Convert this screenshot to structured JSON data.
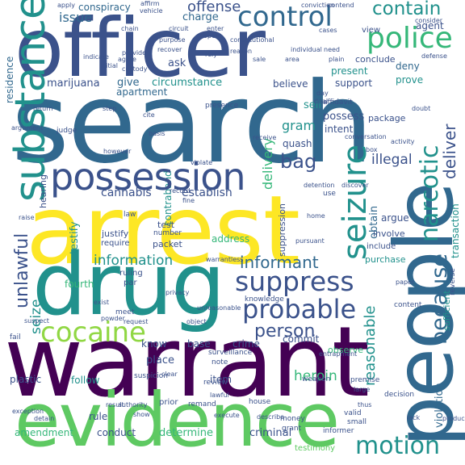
{
  "palette": {
    "purple": "#440154",
    "indigo": "#3b528b",
    "blue": "#31688e",
    "teal": "#21918c",
    "seagreen": "#35b779",
    "green": "#5ec962",
    "lime": "#90d743",
    "yellow": "#fde725"
  },
  "words": [
    {
      "t": "search",
      "c": "blue",
      "w": 1.0
    },
    {
      "t": "arrest",
      "c": "yellow",
      "w": 0.86
    },
    {
      "t": "warrant",
      "c": "purple",
      "w": 0.93
    },
    {
      "t": "officer",
      "c": "indigo",
      "w": 0.78
    },
    {
      "t": "drug",
      "c": "teal",
      "w": 0.77
    },
    {
      "t": "evidence",
      "c": "green",
      "w": 0.7
    },
    {
      "t": "people",
      "c": "blue",
      "w": 0.72
    },
    {
      "t": "substance",
      "c": "teal",
      "w": 0.45
    },
    {
      "t": "possession",
      "c": "indigo",
      "w": 0.42
    },
    {
      "t": "police",
      "c": "seagreen",
      "w": 0.33
    },
    {
      "t": "control",
      "c": "blue",
      "w": 0.31
    },
    {
      "t": "seizure",
      "c": "teal",
      "w": 0.3
    },
    {
      "t": "cocaine",
      "c": "lime",
      "w": 0.31
    },
    {
      "t": "probable",
      "c": "indigo",
      "w": 0.3
    },
    {
      "t": "suppress",
      "c": "indigo",
      "w": 0.3
    },
    {
      "t": "motion",
      "c": "teal",
      "w": 0.3
    },
    {
      "t": "narcotic",
      "c": "teal",
      "w": 0.28
    },
    {
      "t": "because",
      "c": "blue",
      "w": 0.27
    },
    {
      "t": "contain",
      "c": "teal",
      "w": 0.22
    },
    {
      "t": "bag",
      "c": "indigo",
      "w": 0.2
    },
    {
      "t": "unlawful",
      "c": "indigo",
      "w": 0.18
    },
    {
      "t": "informant",
      "c": "blue",
      "w": 0.18
    },
    {
      "t": "person",
      "c": "indigo",
      "w": 0.19
    },
    {
      "t": "heroin",
      "c": "seagreen",
      "w": 0.15
    },
    {
      "t": "deliver",
      "c": "indigo",
      "w": 0.14
    },
    {
      "t": "delivery",
      "c": "seagreen",
      "w": 0.13
    },
    {
      "t": "illegal",
      "c": "indigo",
      "w": 0.14
    },
    {
      "t": "reasonable",
      "c": "teal",
      "w": 0.14
    },
    {
      "t": "offense",
      "c": "indigo",
      "w": 0.14
    },
    {
      "t": "issue",
      "c": "blue",
      "w": 0.12
    },
    {
      "t": "information",
      "c": "teal",
      "w": 0.12
    },
    {
      "t": "seize",
      "c": "teal",
      "w": 0.12
    },
    {
      "t": "gram",
      "c": "teal",
      "w": 0.11
    },
    {
      "t": "establish",
      "c": "indigo",
      "w": 0.1
    },
    {
      "t": "cannabis",
      "c": "indigo",
      "w": 0.1
    },
    {
      "t": "marijuana",
      "c": "indigo",
      "w": 0.1
    },
    {
      "t": "give",
      "c": "blue",
      "w": 0.1
    },
    {
      "t": "circumstance",
      "c": "teal",
      "w": 0.1
    },
    {
      "t": "possess",
      "c": "indigo",
      "w": 0.1
    },
    {
      "t": "obtain",
      "c": "blue",
      "w": 0.1
    },
    {
      "t": "charge",
      "c": "blue",
      "w": 0.09
    },
    {
      "t": "conspiracy",
      "c": "blue",
      "w": 0.09
    },
    {
      "t": "believe",
      "c": "indigo",
      "w": 0.09
    },
    {
      "t": "apartment",
      "c": "blue",
      "w": 0.09
    },
    {
      "t": "present",
      "c": "teal",
      "w": 0.09
    },
    {
      "t": "support",
      "c": "indigo",
      "w": 0.09
    },
    {
      "t": "ask",
      "c": "indigo",
      "w": 0.09
    },
    {
      "t": "testify",
      "c": "teal",
      "w": 0.09
    },
    {
      "t": "quash",
      "c": "indigo",
      "w": 0.09
    },
    {
      "t": "intent",
      "c": "indigo",
      "w": 0.09
    },
    {
      "t": "argue",
      "c": "indigo",
      "w": 0.09
    },
    {
      "t": "package",
      "c": "indigo",
      "w": 0.08
    },
    {
      "t": "prove",
      "c": "teal",
      "w": 0.08
    },
    {
      "t": "sell",
      "c": "teal",
      "w": 0.08
    },
    {
      "t": "deny",
      "c": "blue",
      "w": 0.08
    },
    {
      "t": "conclude",
      "c": "indigo",
      "w": 0.08
    },
    {
      "t": "agent",
      "c": "indigo",
      "w": 0.08
    },
    {
      "t": "residence",
      "c": "blue",
      "w": 0.08
    },
    {
      "t": "fourth",
      "c": "seagreen",
      "w": 0.08
    },
    {
      "t": "address",
      "c": "seagreen",
      "w": 0.08
    },
    {
      "t": "commit",
      "c": "indigo",
      "w": 0.08
    },
    {
      "t": "plastic",
      "c": "indigo",
      "w": 0.08
    },
    {
      "t": "follow",
      "c": "teal",
      "w": 0.08
    },
    {
      "t": "item",
      "c": "indigo",
      "w": 0.08
    },
    {
      "t": "place",
      "c": "indigo",
      "w": 0.08
    },
    {
      "t": "know",
      "c": "indigo",
      "w": 0.08
    },
    {
      "t": "determine",
      "c": "seagreen",
      "w": 0.08
    },
    {
      "t": "criminal",
      "c": "indigo",
      "w": 0.08
    },
    {
      "t": "conduct",
      "c": "indigo",
      "w": 0.08
    },
    {
      "t": "amendment",
      "c": "seagreen",
      "w": 0.07
    },
    {
      "t": "rule",
      "c": "indigo",
      "w": 0.07
    },
    {
      "t": "violation",
      "c": "blue",
      "w": 0.07
    },
    {
      "t": "transaction",
      "c": "teal",
      "w": 0.07
    },
    {
      "t": "sufficient",
      "c": "teal",
      "w": 0.07
    },
    {
      "t": "view",
      "c": "indigo",
      "w": 0.06
    },
    {
      "t": "contraband",
      "c": "teal",
      "w": 0.07
    },
    {
      "t": "base",
      "c": "indigo",
      "w": 0.07
    },
    {
      "t": "crime",
      "c": "indigo",
      "w": 0.07
    },
    {
      "t": "suppression",
      "c": "indigo",
      "w": 0.06
    },
    {
      "t": "observe",
      "c": "seagreen",
      "w": 0.06
    },
    {
      "t": "purchase",
      "c": "teal",
      "w": 0.06
    },
    {
      "t": "involve",
      "c": "indigo",
      "w": 0.06
    },
    {
      "t": "include",
      "c": "indigo",
      "w": 0.05
    },
    {
      "t": "justify",
      "c": "indigo",
      "w": 0.06
    },
    {
      "t": "hearing",
      "c": "indigo",
      "w": 0.06
    },
    {
      "t": "packet",
      "c": "indigo",
      "w": 0.06
    },
    {
      "t": "test",
      "c": "indigo",
      "w": 0.06
    },
    {
      "t": "number",
      "c": "indigo",
      "w": 0.05
    },
    {
      "t": "require",
      "c": "indigo",
      "w": 0.05
    },
    {
      "t": "ruling",
      "c": "indigo",
      "w": 0.05
    },
    {
      "t": "par",
      "c": "indigo",
      "w": 0.05
    },
    {
      "t": "meet",
      "c": "indigo",
      "w": 0.05
    },
    {
      "t": "note",
      "c": "indigo",
      "w": 0.05
    },
    {
      "t": "review",
      "c": "indigo",
      "w": 0.05
    },
    {
      "t": "surveillance",
      "c": "indigo",
      "w": 0.05
    },
    {
      "t": "suspicion",
      "c": "indigo",
      "w": 0.05
    },
    {
      "t": "prior",
      "c": "indigo",
      "w": 0.05
    },
    {
      "t": "remand",
      "c": "indigo",
      "w": 0.05
    },
    {
      "t": "house",
      "c": "indigo",
      "w": 0.05
    },
    {
      "t": "money",
      "c": "indigo",
      "w": 0.05
    },
    {
      "t": "grant",
      "c": "indigo",
      "w": 0.05
    },
    {
      "t": "testimony",
      "c": "green",
      "w": 0.05
    },
    {
      "t": "informer",
      "c": "indigo",
      "w": 0.05
    },
    {
      "t": "small",
      "c": "indigo",
      "w": 0.05
    },
    {
      "t": "valid",
      "c": "indigo",
      "w": 0.05
    },
    {
      "t": "decision",
      "c": "indigo",
      "w": 0.05
    },
    {
      "t": "premise",
      "c": "indigo",
      "w": 0.05
    },
    {
      "t": "weapon",
      "c": "indigo",
      "w": 0.05
    },
    {
      "t": "content",
      "c": "indigo",
      "w": 0.05
    },
    {
      "t": "knowledge",
      "c": "indigo",
      "w": 0.04
    },
    {
      "t": "fail",
      "c": "indigo",
      "w": 0.05
    },
    {
      "t": "suspect",
      "c": "indigo",
      "w": 0.04
    },
    {
      "t": "exception",
      "c": "indigo",
      "w": 0.04
    },
    {
      "t": "detain",
      "c": "indigo",
      "w": 0.04
    },
    {
      "t": "execute",
      "c": "indigo",
      "w": 0.04
    },
    {
      "t": "authority",
      "c": "indigo",
      "w": 0.04
    },
    {
      "t": "show",
      "c": "indigo",
      "w": 0.04
    },
    {
      "t": "result",
      "c": "indigo",
      "w": 0.04
    },
    {
      "t": "describe",
      "c": "indigo",
      "w": 0.04
    },
    {
      "t": "affidavit",
      "c": "indigo",
      "w": 0.04
    },
    {
      "t": "presence",
      "c": "indigo",
      "w": 0.04
    },
    {
      "t": "cite",
      "c": "indigo",
      "w": 0.04
    },
    {
      "t": "step",
      "c": "indigo",
      "w": 0.04
    },
    {
      "t": "judge",
      "c": "indigo",
      "w": 0.04
    },
    {
      "t": "apply",
      "c": "indigo",
      "w": 0.04
    },
    {
      "t": "affirm",
      "c": "indigo",
      "w": 0.04
    },
    {
      "t": "vehicle",
      "c": "indigo",
      "w": 0.04
    },
    {
      "t": "conviction",
      "c": "indigo",
      "w": 0.04
    },
    {
      "t": "contend",
      "c": "indigo",
      "w": 0.04
    },
    {
      "t": "consider",
      "c": "indigo",
      "w": 0.04
    },
    {
      "t": "chain",
      "c": "indigo",
      "w": 0.04
    },
    {
      "t": "circuit",
      "c": "indigo",
      "w": 0.04
    },
    {
      "t": "enter",
      "c": "indigo",
      "w": 0.04
    },
    {
      "t": "purpose",
      "c": "indigo",
      "w": 0.04
    },
    {
      "t": "provide",
      "c": "indigo",
      "w": 0.04
    },
    {
      "t": "recover",
      "c": "indigo",
      "w": 0.04
    },
    {
      "t": "custody",
      "c": "indigo",
      "w": 0.04
    },
    {
      "t": "agree",
      "c": "indigo",
      "w": 0.04
    },
    {
      "t": "rely",
      "c": "indigo",
      "w": 0.04
    },
    {
      "t": "reason",
      "c": "indigo",
      "w": 0.04
    },
    {
      "t": "sale",
      "c": "indigo",
      "w": 0.04
    },
    {
      "t": "area",
      "c": "indigo",
      "w": 0.04
    },
    {
      "t": "need",
      "c": "indigo",
      "w": 0.04
    },
    {
      "t": "plain",
      "c": "indigo",
      "w": 0.04
    },
    {
      "t": "defense",
      "c": "indigo",
      "w": 0.04
    },
    {
      "t": "deal",
      "c": "indigo",
      "w": 0.04
    },
    {
      "t": "day",
      "c": "indigo",
      "w": 0.04
    },
    {
      "t": "doubt",
      "c": "indigo",
      "w": 0.04
    },
    {
      "t": "return",
      "c": "indigo",
      "w": 0.04
    },
    {
      "t": "argument",
      "c": "indigo",
      "w": 0.04
    },
    {
      "t": "basis",
      "c": "indigo",
      "w": 0.04
    },
    {
      "t": "receive",
      "c": "indigo",
      "w": 0.04
    },
    {
      "t": "however",
      "c": "indigo",
      "w": 0.04
    },
    {
      "t": "box",
      "c": "indigo",
      "w": 0.04
    },
    {
      "t": "activity",
      "c": "indigo",
      "w": 0.04
    },
    {
      "t": "discover",
      "c": "indigo",
      "w": 0.04
    },
    {
      "t": "home",
      "c": "indigo",
      "w": 0.04
    },
    {
      "t": "detention",
      "c": "indigo",
      "w": 0.04
    },
    {
      "t": "use",
      "c": "indigo",
      "w": 0.04
    },
    {
      "t": "record",
      "c": "indigo",
      "w": 0.04
    },
    {
      "t": "fine",
      "c": "indigo",
      "w": 0.04
    },
    {
      "t": "law",
      "c": "indigo",
      "w": 0.04
    },
    {
      "t": "raise",
      "c": "indigo",
      "w": 0.04
    },
    {
      "t": "pursuant",
      "c": "indigo",
      "w": 0.04
    },
    {
      "t": "warrantless",
      "c": "indigo",
      "w": 0.04
    },
    {
      "t": "exist",
      "c": "indigo",
      "w": 0.04
    },
    {
      "t": "privacy",
      "c": "indigo",
      "w": 0.04
    },
    {
      "t": "powder",
      "c": "indigo",
      "w": 0.04
    },
    {
      "t": "reverse",
      "c": "indigo",
      "w": 0.04
    },
    {
      "t": "unreasonable",
      "c": "indigo",
      "w": 0.04
    },
    {
      "t": "paper",
      "c": "indigo",
      "w": 0.04
    },
    {
      "t": "thus",
      "c": "indigo",
      "w": 0.04
    },
    {
      "t": "large",
      "c": "indigo",
      "w": 0.04
    },
    {
      "t": "lawful",
      "c": "indigo",
      "w": 0.04
    },
    {
      "t": "entrapment",
      "c": "indigo",
      "w": 0.04
    },
    {
      "t": "object",
      "c": "indigo",
      "w": 0.04
    },
    {
      "t": "clear",
      "c": "indigo",
      "w": 0.04
    },
    {
      "t": "request",
      "c": "indigo",
      "w": 0.04
    },
    {
      "t": "lack",
      "c": "indigo",
      "w": 0.04
    },
    {
      "t": "produce",
      "c": "indigo",
      "w": 0.04
    },
    {
      "t": "conversation",
      "c": "indigo",
      "w": 0.04
    },
    {
      "t": "constitutional",
      "c": "indigo",
      "w": 0.04
    },
    {
      "t": "individual",
      "c": "indigo",
      "w": 0.04
    },
    {
      "t": "indicate",
      "c": "indigo",
      "w": 0.04
    },
    {
      "t": "initial",
      "c": "indigo",
      "w": 0.04
    },
    {
      "t": "open",
      "c": "indigo",
      "w": 0.04
    },
    {
      "t": "cases",
      "c": "indigo",
      "w": 0.04
    },
    {
      "t": "violate",
      "c": "indigo",
      "w": 0.04
    }
  ]
}
